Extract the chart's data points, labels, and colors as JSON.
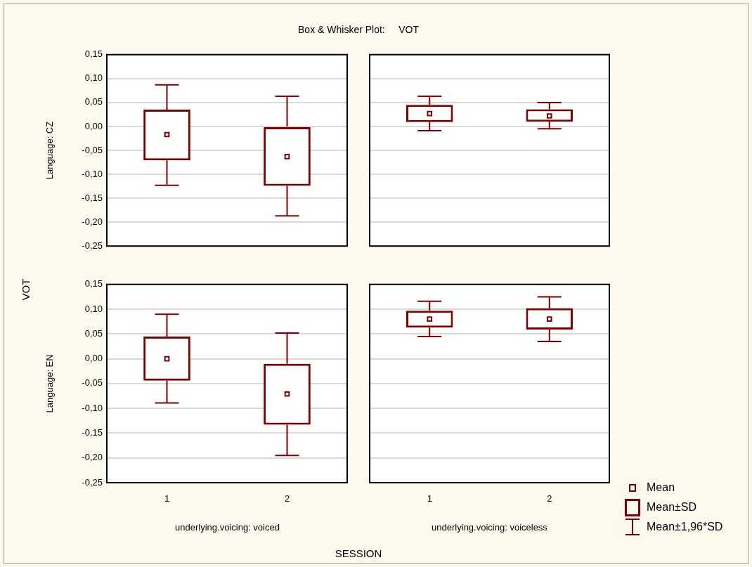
{
  "chart_data": [
    {
      "type": "box",
      "title": "Box & Whisker Plot:     VOT",
      "ylabel": "Language: CZ",
      "categories": [
        "1",
        "2"
      ],
      "color": "#800000",
      "boxes": [
        {
          "low": -0.123,
          "q1": -0.071,
          "q3": 0.035,
          "high": 0.087,
          "mean": -0.017
        },
        {
          "low": -0.187,
          "q1": -0.124,
          "q3": 0.0,
          "high": 0.063,
          "mean": -0.063
        }
      ],
      "ylim": [
        -0.25,
        0.15
      ],
      "yticks": [
        {
          "value": -0.25,
          "label": "-0,25"
        },
        {
          "value": -0.2,
          "label": "-0,20"
        },
        {
          "value": -0.15,
          "label": "-0,15"
        },
        {
          "value": -0.1,
          "label": "-0,10"
        },
        {
          "value": -0.05,
          "label": "-0,05"
        },
        {
          "value": 0,
          "label": "0,00"
        },
        {
          "value": 0.05,
          "label": "0,05"
        },
        {
          "value": 0.1,
          "label": "0,10"
        },
        {
          "value": 0.15,
          "label": "0,15"
        }
      ],
      "grid": "y",
      "tick_labels": "y",
      "annotations": [
        "VOT",
        "SESSION"
      ]
    },
    {
      "type": "box",
      "categories": [
        "1",
        "2"
      ],
      "color": "#800000",
      "boxes": [
        {
          "low": -0.009,
          "q1": 0.009,
          "q3": 0.045,
          "high": 0.063,
          "mean": 0.027
        },
        {
          "low": -0.005,
          "q1": 0.01,
          "q3": 0.036,
          "high": 0.05,
          "mean": 0.022
        }
      ],
      "ylim": [
        -0.25,
        0.15
      ],
      "grid": "y",
      "tick_labels": false
    },
    {
      "type": "box",
      "ylabel": "Language: EN",
      "xlabel": "underlying.voicing: voiced",
      "categories": [
        "1",
        "2"
      ],
      "color": "#800000",
      "boxes": [
        {
          "low": -0.089,
          "q1": -0.044,
          "q3": 0.045,
          "high": 0.09,
          "mean": 0.0
        },
        {
          "low": -0.195,
          "q1": -0.133,
          "q3": -0.01,
          "high": 0.052,
          "mean": -0.071
        }
      ],
      "ylim": [
        -0.25,
        0.15
      ],
      "yticks": [
        {
          "value": -0.25,
          "label": "-0,25"
        },
        {
          "value": -0.2,
          "label": "-0,20"
        },
        {
          "value": -0.15,
          "label": "-0,15"
        },
        {
          "value": -0.1,
          "label": "-0,10"
        },
        {
          "value": -0.05,
          "label": "-0,05"
        },
        {
          "value": 0,
          "label": "0,00"
        },
        {
          "value": 0.05,
          "label": "0,05"
        },
        {
          "value": 0.1,
          "label": "0,10"
        },
        {
          "value": 0.15,
          "label": "0,15"
        }
      ],
      "grid": "y"
    },
    {
      "type": "box",
      "xlabel": "underlying.voicing: voiceless",
      "categories": [
        "1",
        "2"
      ],
      "color": "#800000",
      "boxes": [
        {
          "low": 0.045,
          "q1": 0.063,
          "q3": 0.097,
          "high": 0.116,
          "mean": 0.08
        },
        {
          "low": 0.035,
          "q1": 0.059,
          "q3": 0.102,
          "high": 0.125,
          "mean": 0.08
        }
      ],
      "ylim": [
        -0.25,
        0.15
      ],
      "grid": "y",
      "tick_labels": "x",
      "annotations": [
        "Mean",
        "Mean±SD",
        "Mean±1,96*SD"
      ]
    }
  ]
}
